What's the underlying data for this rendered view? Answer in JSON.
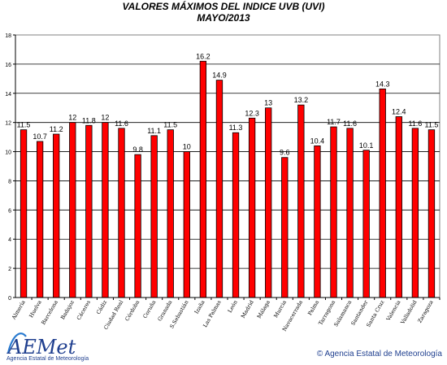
{
  "chart_data": {
    "type": "bar",
    "title": "VALORES MÁXIMOS DEL INDICE UVB (UVI)",
    "subtitle": "MAYO/2013",
    "categories": [
      "Almería",
      "Huelva",
      "Barcelona",
      "Badajoz",
      "Cáceres",
      "Cádiz",
      "Ciudad Real",
      "Córdoba",
      "Coruña",
      "Granada",
      "S.Sebastián",
      "Izaña",
      "Las Palmas",
      "León",
      "Madrid",
      "Málaga",
      "Murcia",
      "Navacerrada",
      "Palma",
      "Tarragona",
      "Salamanca",
      "Santander",
      "Santa Cruz",
      "Valencia",
      "Valladolid",
      "Zaragoza"
    ],
    "values": [
      11.5,
      10.7,
      11.2,
      12,
      11.8,
      12,
      11.6,
      9.8,
      11.1,
      11.5,
      10,
      16.2,
      14.9,
      11.3,
      12.3,
      13,
      9.6,
      13.2,
      10.4,
      11.7,
      11.6,
      10.1,
      14.3,
      12.4,
      11.6,
      11.5
    ],
    "ylim": [
      0,
      18
    ],
    "yticks": [
      0,
      2,
      4,
      6,
      8,
      10,
      12,
      14,
      16,
      18
    ],
    "grid": true,
    "bar_color": "#ff0000"
  },
  "branding": {
    "logo_text": "AEMet",
    "logo_subtitle": "Agencia Estatal de Meteorología",
    "credit": "© Agencia Estatal de Meteorología"
  }
}
